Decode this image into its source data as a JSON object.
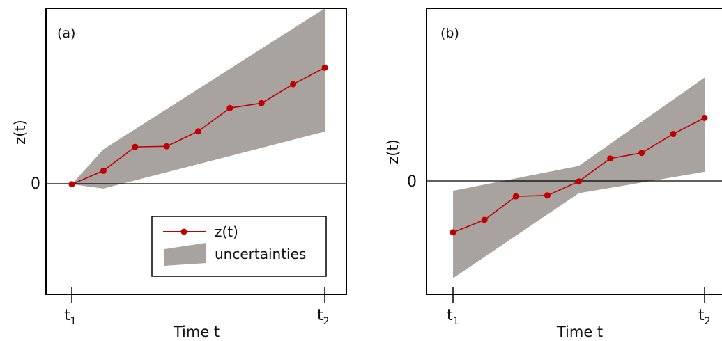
{
  "figure": {
    "panel_a_label": "(a)",
    "panel_b_label": "(b)",
    "colors": {
      "series": "#c00000",
      "band": "#a8a39f",
      "zero_line": "#000000",
      "frame": "#000000"
    }
  },
  "chart_data": [
    {
      "type": "line",
      "panel": "(a)",
      "xlabel": "Time t",
      "ylabel": "z(t)",
      "x_tick_labels": [
        {
          "base": "t",
          "sub": "1"
        },
        {
          "base": "t",
          "sub": "2"
        }
      ],
      "y_tick_labels": [
        "0"
      ],
      "grid": false,
      "legend": {
        "placement": "bottom-right",
        "entries": [
          {
            "label": "z(t)",
            "kind": "line-marker"
          },
          {
            "label": "uncertainties",
            "kind": "band"
          }
        ]
      },
      "series": [
        {
          "name": "z(t)",
          "x": [
            0,
            1,
            2,
            3,
            4,
            5,
            6,
            7,
            8
          ],
          "values": [
            0,
            0.44,
            1.22,
            1.24,
            1.73,
            2.49,
            2.65,
            3.27,
            3.81
          ]
        }
      ],
      "uncertainty_band": {
        "label": "uncertainties",
        "x": [
          0,
          1,
          8
        ],
        "upper": [
          0,
          1.14,
          5.75
        ],
        "lower": [
          0,
          -0.14,
          1.72
        ]
      },
      "xlim": [
        -0.8,
        8.7
      ],
      "ylim": [
        -3.6,
        5.75
      ]
    },
    {
      "type": "line",
      "panel": "(b)",
      "xlabel": "Time t",
      "ylabel": "z(t)",
      "x_tick_labels": [
        {
          "base": "t",
          "sub": "1"
        },
        {
          "base": "t",
          "sub": "2"
        }
      ],
      "y_tick_labels": [
        "0"
      ],
      "grid": false,
      "series": [
        {
          "name": "z(t)",
          "x": [
            0,
            1,
            2,
            3,
            4,
            5,
            6,
            7,
            8
          ],
          "values": [
            -1.72,
            -1.32,
            -0.56,
            -0.53,
            -0.08,
            0.66,
            0.84,
            1.45,
            1.97
          ]
        }
      ],
      "uncertainty_band": {
        "label": "uncertainties",
        "x": [
          0,
          4,
          8
        ],
        "upper": [
          -0.38,
          0.42,
          3.27
        ],
        "lower": [
          -3.2,
          -0.46,
          0.23
        ]
      },
      "xlim": [
        -0.75,
        8.3
      ],
      "ylim": [
        -3.72,
        5.5
      ]
    }
  ]
}
